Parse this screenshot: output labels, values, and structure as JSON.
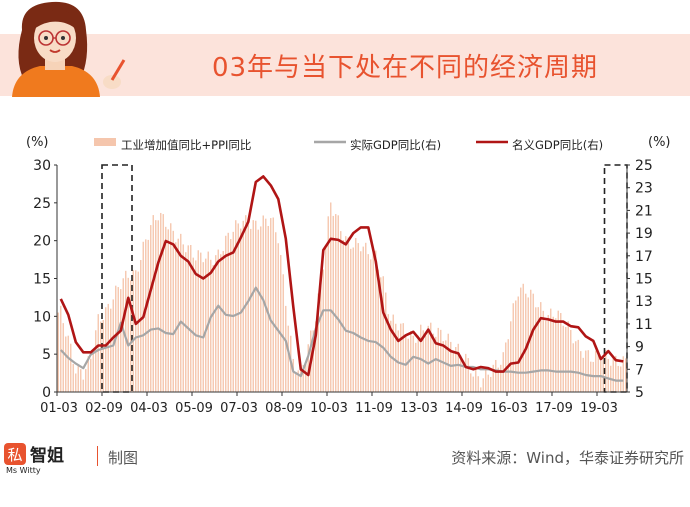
{
  "page": {
    "title": "03年与当下处在不同的经济周期",
    "footer_label": "制图",
    "footer_source": "资料来源：Wind，华泰证券研究所",
    "logo_text": "智姐",
    "logo_sub": "Ms Witty"
  },
  "colors": {
    "accent": "#e8532f",
    "band": "#fce3db",
    "bars": "#f5c6ad",
    "real_gdp": "#a6a6a6",
    "nominal_gdp": "#b01515"
  },
  "chart_data": {
    "type": "bar",
    "left_axis_unit": "(%)",
    "right_axis_unit": "(%)",
    "y_left": {
      "min": 0,
      "max": 30,
      "ticks": [
        0,
        5,
        10,
        15,
        20,
        25,
        30
      ]
    },
    "y_right": {
      "min": 5,
      "max": 25,
      "ticks": [
        5,
        7,
        9,
        11,
        13,
        15,
        17,
        19,
        21,
        23,
        25
      ]
    },
    "x_tick_labels": [
      "01-03",
      "02-09",
      "04-03",
      "05-09",
      "07-03",
      "08-09",
      "10-03",
      "11-09",
      "13-03",
      "14-09",
      "16-03",
      "17-09",
      "19-03"
    ],
    "x_range_quarters": {
      "start": "2001Q1",
      "end": "2019Q4"
    },
    "legend": [
      "工业增加值同比+PPI同比",
      "实际GDP同比(右)",
      "名义GDP同比(右)"
    ],
    "highlight_windows": [
      [
        "2002Q3",
        "2003Q2"
      ],
      [
        "2019Q2",
        "2019Q4"
      ]
    ],
    "series": [
      {
        "name": "工业增加值同比+PPI同比",
        "axis": "left",
        "style": "bar",
        "x_start": "2001-01",
        "frequency": "monthly",
        "values_by_quarter": [
          10.5,
          7.0,
          3.0,
          2.5,
          4.5,
          9.5,
          10.5,
          12.5,
          14.5,
          15.5,
          15.5,
          19.0,
          22.0,
          23.5,
          22.5,
          21.0,
          20.0,
          19.0,
          18.0,
          18.0,
          17.5,
          18.0,
          20.0,
          21.5,
          22.5,
          22.5,
          22.0,
          22.5,
          23.0,
          20.5,
          12.0,
          4.0,
          2.5,
          6.0,
          10.0,
          17.0,
          25.0,
          22.5,
          20.0,
          19.5,
          19.5,
          18.5,
          18.0,
          14.5,
          9.5,
          9.0,
          8.0,
          7.0,
          8.0,
          8.5,
          8.0,
          7.5,
          6.5,
          5.5,
          4.5,
          2.5,
          1.5,
          2.5,
          3.5,
          4.5,
          9.5,
          13.5,
          13.5,
          12.5,
          11.0,
          10.0,
          10.5,
          9.5,
          8.0,
          6.0,
          5.0,
          4.5,
          5.0,
          4.5,
          4.0,
          4.0
        ]
      },
      {
        "name": "实际GDP同比(右)",
        "axis": "right",
        "style": "line",
        "values_by_quarter": [
          8.7,
          8.0,
          7.5,
          7.1,
          8.3,
          8.7,
          8.9,
          9.1,
          11.1,
          9.1,
          9.8,
          10.0,
          10.5,
          10.6,
          10.2,
          10.1,
          11.2,
          10.6,
          10.0,
          9.8,
          11.6,
          12.6,
          11.8,
          11.7,
          12.0,
          13.0,
          14.2,
          13.1,
          11.3,
          10.4,
          9.5,
          6.8,
          6.4,
          8.2,
          10.6,
          12.2,
          12.2,
          11.4,
          10.4,
          10.2,
          9.8,
          9.5,
          9.4,
          8.9,
          8.1,
          7.6,
          7.4,
          8.1,
          7.9,
          7.5,
          7.9,
          7.6,
          7.3,
          7.4,
          7.2,
          7.2,
          7.0,
          7.0,
          6.9,
          6.8,
          6.8,
          6.7,
          6.7,
          6.8,
          6.9,
          6.9,
          6.8,
          6.8,
          6.8,
          6.7,
          6.5,
          6.4,
          6.4,
          6.2,
          6.0,
          6.0
        ]
      },
      {
        "name": "名义GDP同比(右)",
        "axis": "right",
        "style": "line",
        "values_by_quarter": [
          13.2,
          11.8,
          9.4,
          8.5,
          8.5,
          9.1,
          9.1,
          9.8,
          10.4,
          13.3,
          11.0,
          11.6,
          14.0,
          16.4,
          18.3,
          18.0,
          17.0,
          16.5,
          15.4,
          15.0,
          15.5,
          16.5,
          17.0,
          17.3,
          18.6,
          20.0,
          23.5,
          24.0,
          23.2,
          22.0,
          18.5,
          12.5,
          7.0,
          6.5,
          10.0,
          17.5,
          18.5,
          18.4,
          18.0,
          19.0,
          19.5,
          19.5,
          16.5,
          12.0,
          10.5,
          9.5,
          10.0,
          10.3,
          9.5,
          10.5,
          9.3,
          9.1,
          8.6,
          8.4,
          7.2,
          7.0,
          7.2,
          7.1,
          6.8,
          6.8,
          7.5,
          7.6,
          8.8,
          10.5,
          11.5,
          11.4,
          11.2,
          11.2,
          10.8,
          10.7,
          9.9,
          9.5,
          7.9,
          8.6,
          7.8,
          7.7
        ]
      }
    ]
  }
}
